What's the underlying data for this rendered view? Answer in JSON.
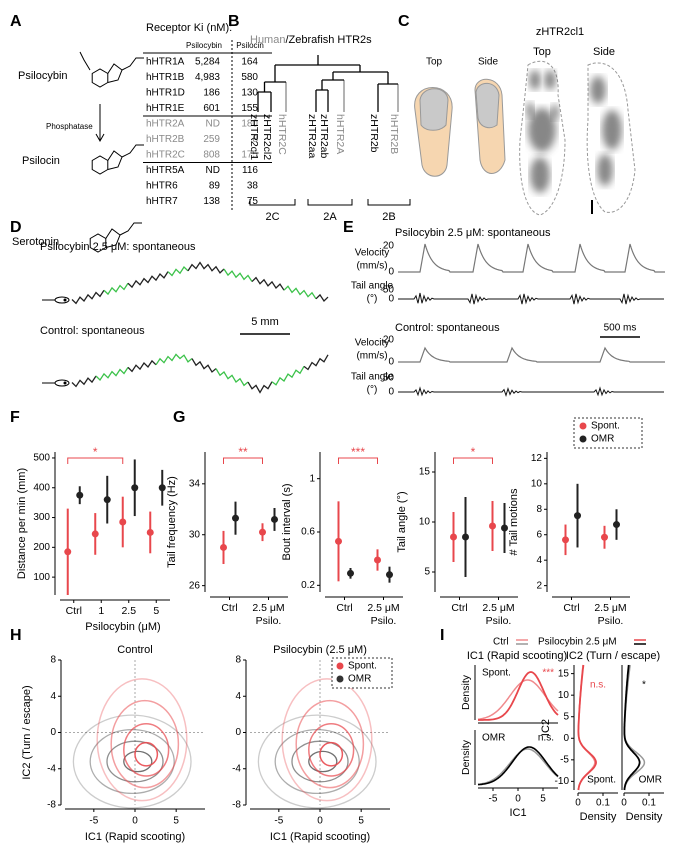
{
  "panel_labels": [
    "A",
    "B",
    "C",
    "D",
    "E",
    "F",
    "G",
    "H",
    "I"
  ],
  "A": {
    "molecules": [
      "Psilocybin",
      "Psilocin",
      "Serotonin"
    ],
    "enzyme": "Phosphatase",
    "table": {
      "title": "Receptor Ki (nM):",
      "columns": [
        "Psilocybin",
        "Psilocin"
      ],
      "gray_rows": [
        4,
        5,
        6
      ],
      "rows": [
        [
          "hHTR1A",
          "5,284",
          "164"
        ],
        [
          "hHTR1B",
          "4,983",
          "580"
        ],
        [
          "hHTR1D",
          "186",
          "130"
        ],
        [
          "hHTR1E",
          "601",
          "155"
        ],
        [
          "hHTR2A",
          "ND",
          "180"
        ],
        [
          "hHTR2B",
          "259",
          "8"
        ],
        [
          "hHTR2C",
          "808",
          "175"
        ],
        [
          "hHTR5A",
          "ND",
          "116"
        ],
        [
          "hHTR6",
          "89",
          "38"
        ],
        [
          "hHTR7",
          "138",
          "75"
        ]
      ]
    }
  },
  "B": {
    "title_prefix": "Human",
    "title_rest": "/Zebrafish HTR2s",
    "leaves": [
      {
        "label": "zHTR2cl1",
        "human": false
      },
      {
        "label": "zHTR2cl2",
        "human": false
      },
      {
        "label": "hHTR2C",
        "human": true
      },
      {
        "label": "zHTR2aa",
        "human": false
      },
      {
        "label": "zHTR2ab",
        "human": false
      },
      {
        "label": "hHTR2A",
        "human": true
      },
      {
        "label": "zHTR2b",
        "human": false
      },
      {
        "label": "hHTR2B",
        "human": true
      }
    ],
    "groups": [
      "2C",
      "2A",
      "2B"
    ]
  },
  "C": {
    "schematic_labels": [
      "Top",
      "Side"
    ],
    "title": "zHTR2cl1",
    "view_labels": [
      "Top",
      "Side"
    ]
  },
  "D": {
    "conditions": [
      "Psilocybin 2.5 μM: spontaneous",
      "Control: spontaneous"
    ],
    "scale": "5 mm"
  },
  "E": {
    "conditions": [
      "Psilocybin 2.5 μM: spontaneous",
      "Control: spontaneous"
    ],
    "velocity_label": [
      "Velocity",
      "(mm/s)"
    ],
    "angle_label": [
      "Tail angle",
      "(°)"
    ],
    "velocity_ticks": [
      20,
      0
    ],
    "angle_ticks": [
      50,
      0
    ],
    "scale": "500 ms"
  },
  "chart_data": [
    {
      "type": "dot",
      "ylabel": "Distance per min (mm)",
      "xlabel": "Psilocybin (μM)",
      "categories": [
        "Ctrl",
        "1",
        "2.5",
        "5"
      ],
      "ylim": [
        40,
        520
      ],
      "yticks": [
        100,
        200,
        300,
        400,
        500
      ],
      "annotation": {
        "text": "*",
        "between": [
          0,
          2
        ]
      },
      "series": [
        {
          "color": "#e8474c",
          "values": [
            185,
            245,
            285,
            250
          ],
          "errors": [
            145,
            70,
            85,
            70
          ]
        },
        {
          "color": "#222222",
          "values": [
            375,
            360,
            400,
            400
          ],
          "errors": [
            30,
            80,
            95,
            60
          ]
        }
      ]
    },
    {
      "type": "dot",
      "ylabel": "Tail frequency (Hz)",
      "categories": [
        "Ctrl",
        "2.5 μM"
      ],
      "x_sublabel": "Psilo.",
      "ylim": [
        25.5,
        36.5
      ],
      "yticks": [
        26,
        30,
        34
      ],
      "annotation": {
        "text": "**",
        "between": [
          0,
          1
        ]
      },
      "series": [
        {
          "color": "#e8474c",
          "values": [
            29.0,
            30.2
          ],
          "errors": [
            1.3,
            0.7
          ]
        },
        {
          "color": "#222222",
          "values": [
            31.3,
            31.2
          ],
          "errors": [
            1.3,
            0.9
          ]
        }
      ]
    },
    {
      "type": "dot",
      "ylabel": "Bout interval (s)",
      "categories": [
        "Ctrl",
        "2.5 μM"
      ],
      "x_sublabel": "Psilo.",
      "ylim": [
        0.15,
        1.2
      ],
      "yticks": [
        0.2,
        0.6,
        1
      ],
      "annotation": {
        "text": "***",
        "between": [
          0,
          1
        ]
      },
      "series": [
        {
          "color": "#e8474c",
          "values": [
            0.53,
            0.39
          ],
          "errors": [
            0.3,
            0.08
          ]
        },
        {
          "color": "#222222",
          "values": [
            0.29,
            0.28
          ],
          "errors": [
            0.04,
            0.06
          ]
        }
      ]
    },
    {
      "type": "dot",
      "ylabel": "Tail angle (°)",
      "categories": [
        "Ctrl",
        "2.5 μM"
      ],
      "x_sublabel": "Psilo.",
      "ylim": [
        3,
        17
      ],
      "yticks": [
        5,
        10,
        15
      ],
      "annotation": {
        "text": "*",
        "between": [
          0,
          1
        ]
      },
      "series": [
        {
          "color": "#e8474c",
          "values": [
            8.5,
            9.6
          ],
          "errors": [
            2.5,
            2.5
          ]
        },
        {
          "color": "#222222",
          "values": [
            8.5,
            9.4
          ],
          "errors": [
            4,
            2.5
          ]
        }
      ]
    },
    {
      "type": "dot",
      "ylabel": "# Tail motions",
      "categories": [
        "Ctrl",
        "2.5 μM"
      ],
      "x_sublabel": "Psilo.",
      "ylim": [
        1.5,
        12.5
      ],
      "yticks": [
        2,
        4,
        6,
        8,
        10,
        12
      ],
      "series": [
        {
          "name": "Spont.",
          "color": "#e8474c",
          "values": [
            5.6,
            5.8
          ],
          "errors": [
            1.2,
            0.9
          ]
        },
        {
          "name": "OMR",
          "color": "#222222",
          "values": [
            7.5,
            6.8
          ],
          "errors": [
            2.5,
            1.2
          ]
        }
      ]
    },
    {
      "type": "contour",
      "title": "Control",
      "ylabel": "IC2 (Turn / escape)",
      "xlabel": "IC1 (Rapid scooting)",
      "xlim": [
        -8.5,
        8.5
      ],
      "ylim": [
        -8,
        8
      ],
      "xticks": [
        -5,
        0,
        5
      ],
      "yticks": [
        -8,
        -4,
        0,
        4,
        8
      ],
      "series": [
        {
          "color": "#e8474c"
        },
        {
          "color": "#333333"
        }
      ]
    },
    {
      "type": "contour",
      "title": "Psilocybin (2.5 μM)",
      "xlabel": "IC1 (Rapid scooting)",
      "xlim": [
        -8.5,
        8.5
      ],
      "ylim": [
        -8,
        8
      ],
      "xticks": [
        -5,
        0,
        5
      ],
      "yticks": [
        -8,
        -4,
        0,
        4,
        8
      ],
      "series": [
        {
          "name": "Spont.",
          "color": "#e8474c"
        },
        {
          "name": "OMR",
          "color": "#333333"
        }
      ]
    }
  ],
  "I": {
    "legend": [
      "Ctrl",
      "Psilocybin 2.5 μM"
    ],
    "ic1": {
      "title": "IC1 (Rapid scooting)",
      "xlabel": "IC1",
      "xlim": [
        -8,
        8
      ],
      "xticks": [
        -5,
        0,
        5
      ],
      "subplots": [
        {
          "condition": "Spont.",
          "stat": "***",
          "ylabel": "Density"
        },
        {
          "condition": "OMR",
          "stat": "n.s.",
          "ylabel": "Density"
        }
      ]
    },
    "ic2": {
      "title": "IC2 (Turn / escape)",
      "ylabel": "IC2",
      "ylim": [
        -12,
        17
      ],
      "yticks": [
        -10,
        -5,
        0,
        5,
        10,
        15
      ],
      "xlim": [
        0,
        0.16
      ],
      "subplots": [
        {
          "condition": "Spont.",
          "stat": "n.s.",
          "xticks": [
            0,
            0.1
          ],
          "xlabel": "Density"
        },
        {
          "condition": "OMR",
          "stat": "*",
          "xticks": [
            0,
            0.1
          ],
          "xlabel": "Density"
        }
      ]
    }
  }
}
